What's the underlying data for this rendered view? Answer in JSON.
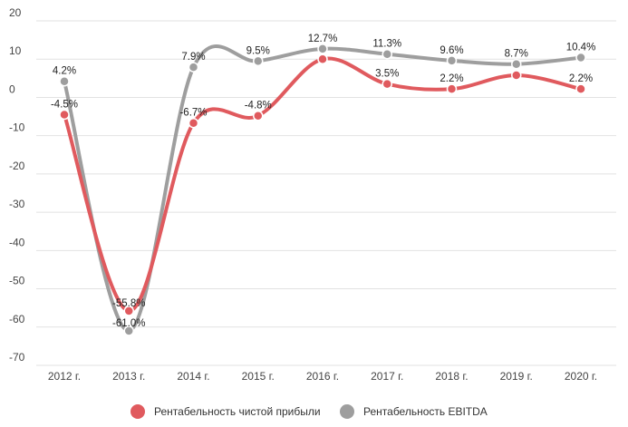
{
  "chart_data": {
    "type": "line",
    "categories": [
      "2012 г.",
      "2013 г.",
      "2014 г.",
      "2015 г.",
      "2016 г.",
      "2017 г.",
      "2018 г.",
      "2019 г.",
      "2020 г."
    ],
    "ylim": [
      -70,
      20
    ],
    "yticks": [
      20,
      10,
      0,
      -10,
      -20,
      -30,
      -40,
      -50,
      -60,
      -70
    ],
    "grid": true,
    "legend_position": "bottom",
    "series": [
      {
        "name": "Рентабельность EBITDA",
        "color": "#9e9e9e",
        "values": [
          4.2,
          -61.0,
          7.9,
          9.5,
          12.7,
          11.3,
          9.6,
          8.7,
          10.4
        ],
        "labels": [
          "4.2%",
          "-61.0%",
          "7.9%",
          "9.5%",
          "12.7%",
          "11.3%",
          "9.6%",
          "8.7%",
          "10.4%"
        ]
      },
      {
        "name": "Рентабельность чистой прибыли",
        "color": "#e05a5e",
        "values": [
          -4.5,
          -55.8,
          -6.7,
          -4.8,
          10.0,
          3.5,
          2.2,
          5.8,
          2.2
        ],
        "labels": [
          "-4.5%",
          "-55.8%",
          "-6.7%",
          "-4.8%",
          "",
          "3.5%",
          "2.2%",
          "",
          "2.2%"
        ]
      }
    ]
  }
}
